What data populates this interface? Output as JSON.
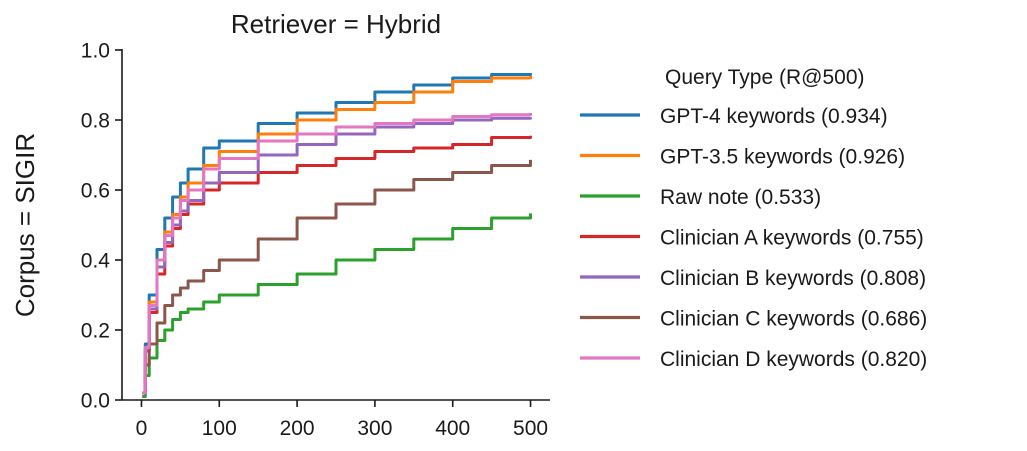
{
  "chart_data": {
    "type": "line",
    "title": "Retriever = Hybrid",
    "xlabel": "",
    "ylabel": "Corpus = SIGIR",
    "xlim": [
      -25,
      525
    ],
    "ylim": [
      0,
      1.0
    ],
    "x_ticks": [
      0,
      100,
      200,
      300,
      400,
      500
    ],
    "y_ticks": [
      0.0,
      0.2,
      0.4,
      0.6,
      0.8,
      1.0
    ],
    "x_tick_labels": [
      "0",
      "100",
      "200",
      "300",
      "400",
      "500"
    ],
    "y_tick_labels": [
      "0.0",
      "0.2",
      "0.4",
      "0.6",
      "0.8",
      "1.0"
    ],
    "grid": false,
    "legend": {
      "title": "Query Type (R@500)",
      "placement": "right"
    },
    "series": [
      {
        "name": "GPT-4 keywords (0.934)",
        "color": "#1f77b4",
        "x": [
          1,
          5,
          10,
          20,
          30,
          40,
          50,
          60,
          80,
          100,
          150,
          200,
          250,
          300,
          350,
          400,
          450,
          500
        ],
        "y": [
          0.02,
          0.16,
          0.3,
          0.43,
          0.52,
          0.58,
          0.62,
          0.66,
          0.72,
          0.74,
          0.79,
          0.82,
          0.85,
          0.88,
          0.9,
          0.92,
          0.93,
          0.934
        ]
      },
      {
        "name": "GPT-3.5 keywords (0.926)",
        "color": "#ff7f0e",
        "x": [
          1,
          5,
          10,
          20,
          30,
          40,
          50,
          60,
          80,
          100,
          150,
          200,
          250,
          300,
          350,
          400,
          450,
          500
        ],
        "y": [
          0.02,
          0.15,
          0.28,
          0.4,
          0.48,
          0.53,
          0.58,
          0.62,
          0.67,
          0.71,
          0.76,
          0.8,
          0.83,
          0.85,
          0.88,
          0.91,
          0.92,
          0.926
        ]
      },
      {
        "name": "Raw note (0.533)",
        "color": "#2ca02c",
        "x": [
          1,
          5,
          10,
          20,
          30,
          40,
          50,
          60,
          80,
          100,
          150,
          200,
          250,
          300,
          350,
          400,
          450,
          500
        ],
        "y": [
          0.01,
          0.07,
          0.12,
          0.17,
          0.2,
          0.23,
          0.25,
          0.26,
          0.28,
          0.3,
          0.33,
          0.36,
          0.4,
          0.43,
          0.46,
          0.49,
          0.52,
          0.533
        ]
      },
      {
        "name": "Clinician A keywords (0.755)",
        "color": "#d62728",
        "x": [
          1,
          5,
          10,
          20,
          30,
          40,
          50,
          60,
          80,
          100,
          150,
          200,
          250,
          300,
          350,
          400,
          450,
          500
        ],
        "y": [
          0.02,
          0.14,
          0.25,
          0.36,
          0.44,
          0.49,
          0.53,
          0.56,
          0.6,
          0.62,
          0.65,
          0.67,
          0.69,
          0.71,
          0.72,
          0.73,
          0.75,
          0.755
        ]
      },
      {
        "name": "Clinician B keywords (0.808)",
        "color": "#9467bd",
        "x": [
          1,
          5,
          10,
          20,
          30,
          40,
          50,
          60,
          80,
          100,
          150,
          200,
          250,
          300,
          350,
          400,
          450,
          500
        ],
        "y": [
          0.02,
          0.14,
          0.26,
          0.38,
          0.45,
          0.5,
          0.54,
          0.57,
          0.62,
          0.65,
          0.7,
          0.73,
          0.76,
          0.78,
          0.79,
          0.8,
          0.805,
          0.808
        ]
      },
      {
        "name": "Clinician C keywords (0.686)",
        "color": "#8c564b",
        "x": [
          1,
          5,
          10,
          20,
          30,
          40,
          50,
          60,
          80,
          100,
          150,
          200,
          250,
          300,
          350,
          400,
          450,
          500
        ],
        "y": [
          0.02,
          0.1,
          0.16,
          0.22,
          0.27,
          0.3,
          0.32,
          0.34,
          0.37,
          0.4,
          0.46,
          0.52,
          0.56,
          0.6,
          0.63,
          0.65,
          0.67,
          0.686
        ]
      },
      {
        "name": "Clinician D keywords (0.820)",
        "color": "#e377c2",
        "x": [
          1,
          5,
          10,
          20,
          30,
          40,
          50,
          60,
          80,
          100,
          150,
          200,
          250,
          300,
          350,
          400,
          450,
          500
        ],
        "y": [
          0.02,
          0.15,
          0.27,
          0.4,
          0.47,
          0.52,
          0.57,
          0.6,
          0.66,
          0.69,
          0.74,
          0.76,
          0.78,
          0.79,
          0.8,
          0.81,
          0.815,
          0.82
        ]
      }
    ]
  }
}
